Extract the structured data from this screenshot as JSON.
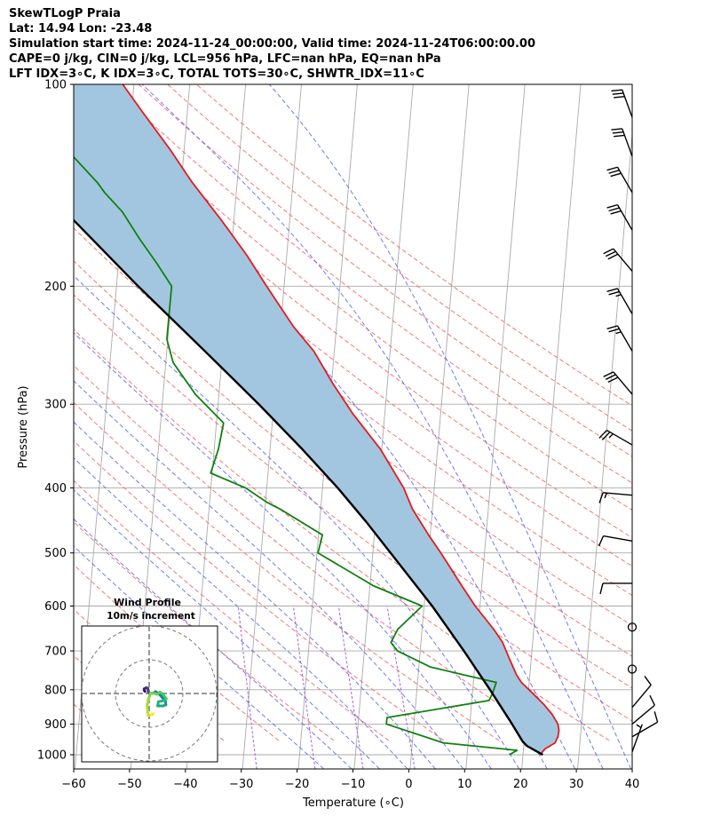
{
  "header": {
    "lines": [
      "SkewTLogP Praia",
      "Lat: 14.94   Lon: -23.48",
      "Simulation start time: 2024-11-24_00:00:00, Valid time: 2024-11-24T06:00:00.00",
      "CAPE=0 j/kg, CIN=0 j/kg, LCL=956 hPa, LFC=nan hPa, EQ=nan hPa",
      "LFT IDX=3∘C, K IDX=3∘C, TOTAL TOTS=30∘C, SHWTR_IDX=11∘C"
    ]
  },
  "chart_data": {
    "type": "line",
    "xlabel": "Temperature (∘C)",
    "ylabel": "Pressure (hPa)",
    "xlim": [
      -60,
      40
    ],
    "ylim": [
      1050,
      100
    ],
    "y_scale": "log",
    "skew": true,
    "xticks": [
      "−60",
      "−50",
      "−40",
      "−30",
      "−20",
      "−10",
      "0",
      "10",
      "20",
      "30",
      "40"
    ],
    "yticks": [
      "100",
      "200",
      "300",
      "400",
      "500",
      "600",
      "700",
      "800",
      "900",
      "1000"
    ],
    "colors": {
      "temperature": "#e31a1c",
      "dewpoint": "#108010",
      "parcel": "#000000",
      "shading": "#a3c6e0",
      "dry_adiabats": "#f06060",
      "moist_adiabats": "#5566ee",
      "mixing_ratio": "#9955cc",
      "isotherms": "#aaaaaa"
    },
    "series": [
      {
        "key": "temperature",
        "points": [
          [
            1000,
            23.5
          ],
          [
            980,
            24.3
          ],
          [
            960,
            26.0
          ],
          [
            940,
            26.4
          ],
          [
            920,
            26.5
          ],
          [
            900,
            26.2
          ],
          [
            870,
            25.0
          ],
          [
            840,
            23.3
          ],
          [
            800,
            20.5
          ],
          [
            780,
            19.0
          ],
          [
            760,
            18.0
          ],
          [
            720,
            16.5
          ],
          [
            680,
            15.0
          ],
          [
            650,
            13.2
          ],
          [
            600,
            9.5
          ],
          [
            560,
            6.8
          ],
          [
            500,
            2.5
          ],
          [
            470,
            0.0
          ],
          [
            430,
            -3.3
          ],
          [
            400,
            -5.2
          ],
          [
            350,
            -10.0
          ],
          [
            310,
            -15.5
          ],
          [
            280,
            -19.5
          ],
          [
            250,
            -23.5
          ],
          [
            230,
            -27.5
          ],
          [
            200,
            -33.0
          ],
          [
            180,
            -37.0
          ],
          [
            160,
            -42.0
          ],
          [
            140,
            -48.0
          ],
          [
            125,
            -52.5
          ],
          [
            110,
            -58.0
          ],
          [
            100,
            -62.0
          ]
        ]
      },
      {
        "key": "dewpoint",
        "points": [
          [
            1000,
            18.0
          ],
          [
            985,
            19.3
          ],
          [
            960,
            6.0
          ],
          [
            900,
            -4.5
          ],
          [
            880,
            -4.5
          ],
          [
            830,
            13.5
          ],
          [
            810,
            14.0
          ],
          [
            780,
            14.5
          ],
          [
            740,
            2.5
          ],
          [
            700,
            -3.7
          ],
          [
            680,
            -5.0
          ],
          [
            650,
            -4.0
          ],
          [
            600,
            0.0
          ],
          [
            560,
            -9.0
          ],
          [
            500,
            -19.5
          ],
          [
            470,
            -19.0
          ],
          [
            430,
            -27.0
          ],
          [
            420,
            -29.5
          ],
          [
            400,
            -33.5
          ],
          [
            380,
            -40.0
          ],
          [
            350,
            -39.0
          ],
          [
            320,
            -38.5
          ],
          [
            290,
            -44.0
          ],
          [
            260,
            -48.5
          ],
          [
            240,
            -50.0
          ],
          [
            200,
            -50.0
          ],
          [
            185,
            -53.0
          ],
          [
            170,
            -56.5
          ],
          [
            155,
            -60.0
          ],
          [
            145,
            -63.5
          ],
          [
            140,
            -65.0
          ],
          [
            125,
            -71.0
          ],
          [
            115,
            -76.5
          ],
          [
            108,
            -78.0
          ],
          [
            100,
            -79.0
          ]
        ]
      },
      {
        "key": "parcel",
        "points": [
          [
            1000,
            24.0
          ],
          [
            985,
            22.5
          ],
          [
            970,
            21.0
          ],
          [
            956,
            20.2
          ],
          [
            900,
            18.0
          ],
          [
            800,
            13.5
          ],
          [
            700,
            8.2
          ],
          [
            600,
            1.8
          ],
          [
            500,
            -6.5
          ],
          [
            450,
            -11.3
          ],
          [
            400,
            -17.0
          ],
          [
            350,
            -24.0
          ],
          [
            300,
            -32.5
          ],
          [
            250,
            -43.0
          ],
          [
            200,
            -56.0
          ],
          [
            150,
            -72.0
          ],
          [
            125,
            -81.5
          ],
          [
            100,
            -93.0
          ]
        ]
      }
    ],
    "wind_barbs": [
      {
        "p": 112,
        "dir": 340,
        "spd": 30
      },
      {
        "p": 128,
        "dir": 340,
        "spd": 30
      },
      {
        "p": 145,
        "dir": 330,
        "spd": 30
      },
      {
        "p": 165,
        "dir": 330,
        "spd": 30
      },
      {
        "p": 190,
        "dir": 320,
        "spd": 30
      },
      {
        "p": 220,
        "dir": 330,
        "spd": 25
      },
      {
        "p": 250,
        "dir": 330,
        "spd": 25
      },
      {
        "p": 290,
        "dir": 320,
        "spd": 30
      },
      {
        "p": 345,
        "dir": 300,
        "spd": 25
      },
      {
        "p": 410,
        "dir": 275,
        "spd": 15
      },
      {
        "p": 480,
        "dir": 280,
        "spd": 10
      },
      {
        "p": 555,
        "dir": 270,
        "spd": 10
      },
      {
        "p": 645,
        "dir": 0,
        "spd": 0
      },
      {
        "p": 745,
        "dir": 0,
        "spd": 0
      },
      {
        "p": 850,
        "dir": 40,
        "spd": 10
      },
      {
        "p": 900,
        "dir": 50,
        "spd": 10
      },
      {
        "p": 940,
        "dir": 60,
        "spd": 10
      },
      {
        "p": 990,
        "dir": 20,
        "spd": 5
      }
    ],
    "hodograph": {
      "title": "Wind Profile",
      "subtitle": "10m/s increment",
      "points": [
        [
          -1.2,
          0.6
        ],
        [
          -1.4,
          0.9
        ],
        [
          -1.4,
          1.3
        ],
        [
          -0.9,
          1.6
        ],
        [
          -0.4,
          1.5
        ],
        [
          -0.3,
          1.0
        ],
        [
          -0.2,
          0.4
        ],
        [
          0.3,
          0.0
        ],
        [
          1.2,
          0.1
        ],
        [
          1.8,
          0.5
        ],
        [
          2.5,
          0.1
        ],
        [
          3.4,
          -0.8
        ],
        [
          4.6,
          -2.3
        ],
        [
          4.7,
          -3.2
        ],
        [
          3.9,
          -3.5
        ],
        [
          2.4,
          -3.5
        ],
        [
          2.6,
          -2.3
        ],
        [
          4.2,
          -2.0
        ],
        [
          4.8,
          -1.5
        ],
        [
          3.9,
          -0.2
        ],
        [
          3.0,
          0.4
        ],
        [
          2.3,
          -0.2
        ],
        [
          1.6,
          0.0
        ],
        [
          0.4,
          0.1
        ],
        [
          -0.2,
          -1.5
        ],
        [
          -0.6,
          -3.6
        ],
        [
          -0.3,
          -6.2
        ],
        [
          0.6,
          -6.0
        ],
        [
          1.2,
          -5.7
        ]
      ]
    }
  }
}
